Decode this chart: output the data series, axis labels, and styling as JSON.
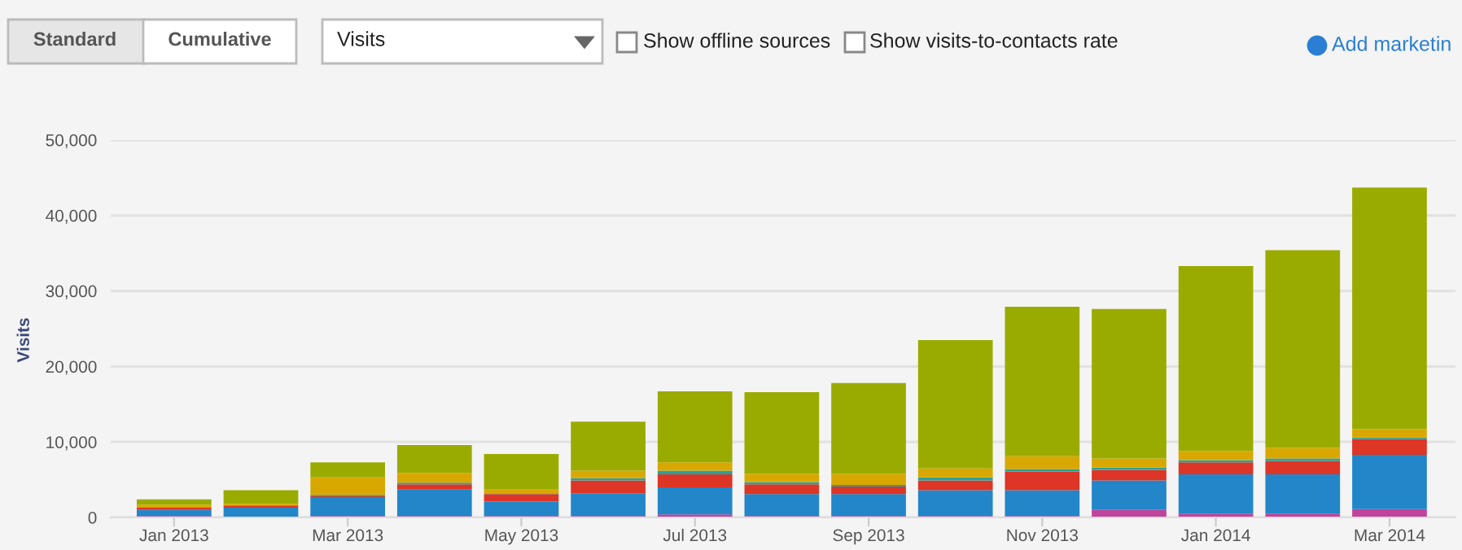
{
  "chart_data": {
    "type": "bar",
    "stacked": true,
    "ylabel": "Visits",
    "annotations": [
      "Standard",
      "Cumulative",
      "Visits",
      "Show offline sources",
      "Show visits-to-contacts rate",
      "Add marketin"
    ],
    "categories": [
      "Jan 2013",
      null,
      "Mar 2013",
      null,
      "May 2013",
      null,
      "Jul 2013",
      null,
      "Sep 2013",
      null,
      "Nov 2013",
      null,
      "Jan 2014",
      null,
      "Mar 2014"
    ],
    "series": [
      {
        "color": "#c0449a",
        "values": [
          200,
          null,
          200,
          200,
          200,
          200,
          400,
          200,
          200,
          200,
          200,
          1000,
          500,
          500,
          1100
        ]
      },
      {
        "color": "#2286c9",
        "values": [
          800,
          1300,
          2500,
          3500,
          1900,
          3000,
          3600,
          2900,
          2900,
          3400,
          3400,
          3900,
          5200,
          5200,
          7200
        ]
      },
      {
        "color": "#dd3526",
        "values": [
          300,
          300,
          100,
          700,
          1000,
          1700,
          1700,
          1300,
          1000,
          1300,
          2500,
          1400,
          1600,
          1800,
          2100
        ]
      },
      {
        "color": "#2aa198",
        "values": [
          0,
          0,
          200,
          200,
          100,
          300,
          500,
          300,
          200,
          400,
          300,
          300,
          300,
          300,
          200
        ]
      },
      {
        "color": "#d9a800",
        "values": [
          400,
          200,
          2300,
          1300,
          500,
          1000,
          1100,
          1100,
          1500,
          1200,
          1700,
          1200,
          1200,
          1400,
          1100
        ]
      },
      {
        "color": "#9aab00",
        "values": [
          700,
          1800,
          2000,
          3700,
          4700,
          6500,
          9400,
          10800,
          12000,
          17000,
          19800,
          19800,
          24500,
          26200,
          32000
        ]
      }
    ],
    "ylim": [
      0,
      50000
    ],
    "yticks": [
      0,
      {
        "value": 10000,
        "label": "10,000"
      },
      {
        "value": 20000,
        "label": "20,000"
      },
      {
        "value": 30000,
        "label": "30,000"
      },
      {
        "value": 40000,
        "label": "40,000"
      },
      {
        "value": 50000,
        "label": "50,000"
      }
    ],
    "grid": "y"
  }
}
